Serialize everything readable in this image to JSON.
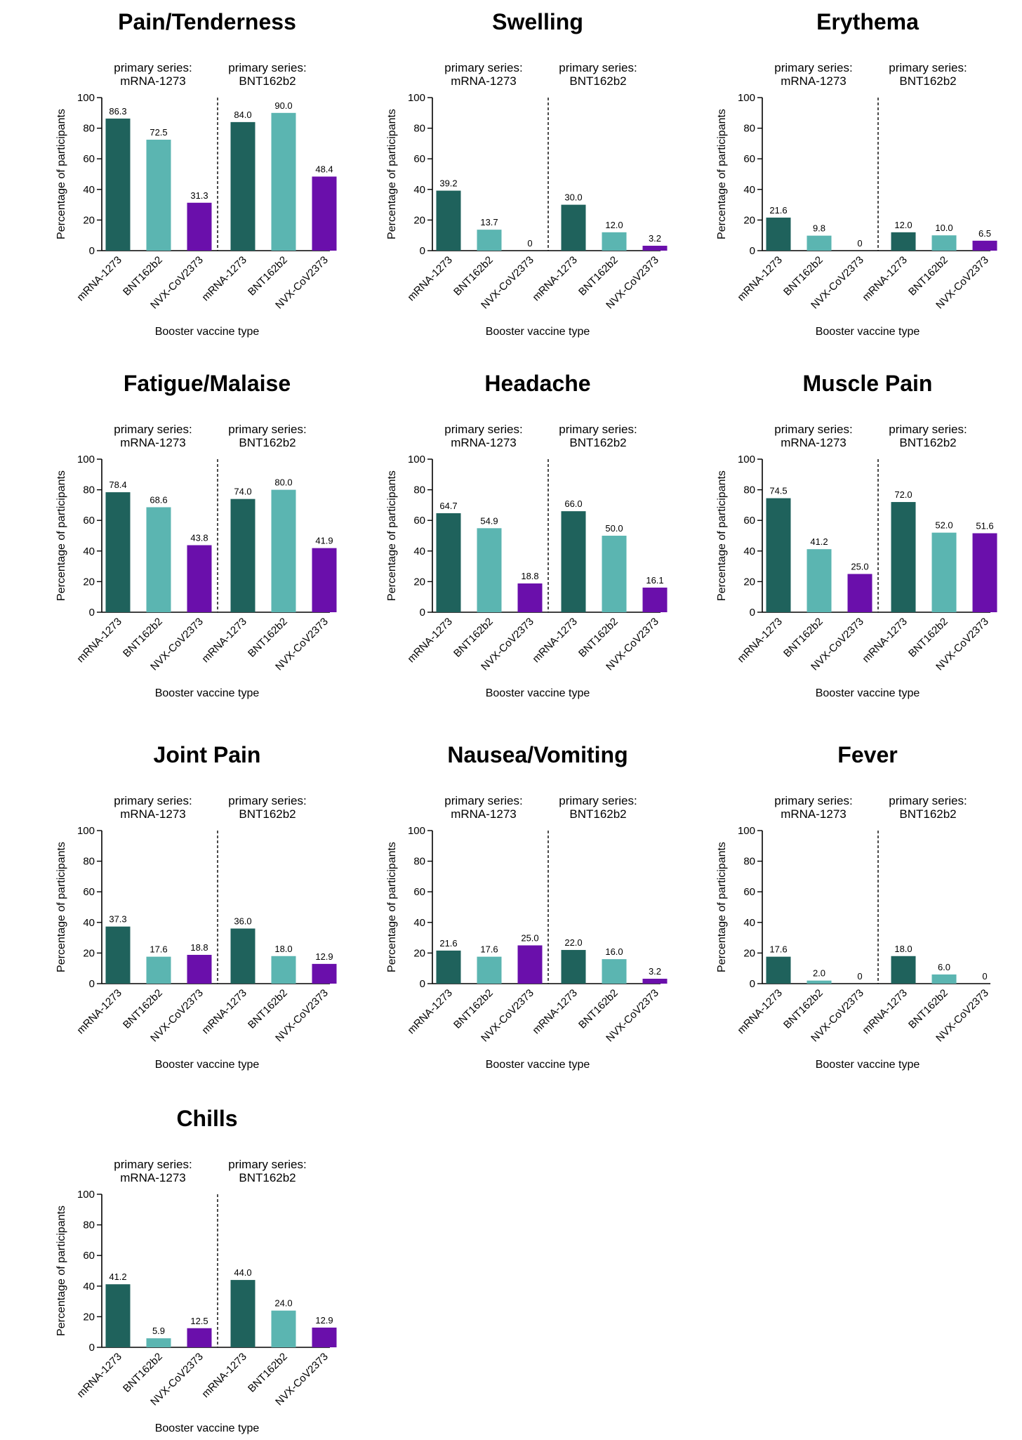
{
  "chart_data": [
    {
      "type": "bar",
      "title": "Pain/Tenderness",
      "group_labels": [
        {
          "line1": "primary series:",
          "line2": "mRNA-1273"
        },
        {
          "line1": "primary series:",
          "line2": "BNT162b2"
        }
      ],
      "categories": [
        "mRNA-1273",
        "BNT162b2",
        "NVX-CoV2373",
        "mRNA-1273",
        "BNT162b2",
        "NVX-CoV2373"
      ],
      "values": [
        86.3,
        72.5,
        31.3,
        84.0,
        90.0,
        48.4
      ],
      "value_labels": [
        "86.3",
        "72.5",
        "31.3",
        "84.0",
        "90.0",
        "48.4"
      ],
      "xlabel": "Booster vaccine type",
      "ylabel": "Percentage of participants",
      "ylim": [
        0,
        100
      ],
      "yticks": [
        "0",
        "20",
        "40",
        "60",
        "80",
        "100"
      ]
    },
    {
      "type": "bar",
      "title": "Swelling",
      "group_labels": [
        {
          "line1": "primary series:",
          "line2": "mRNA-1273"
        },
        {
          "line1": "primary series:",
          "line2": "BNT162b2"
        }
      ],
      "categories": [
        "mRNA-1273",
        "BNT162b2",
        "NVX-CoV2373",
        "mRNA-1273",
        "BNT162b2",
        "NVX-CoV2373"
      ],
      "values": [
        39.2,
        13.7,
        0,
        30.0,
        12.0,
        3.2
      ],
      "value_labels": [
        "39.2",
        "13.7",
        "0",
        "30.0",
        "12.0",
        "3.2"
      ],
      "xlabel": "Booster vaccine type",
      "ylabel": "Percentage of participants",
      "ylim": [
        0,
        100
      ],
      "yticks": [
        "0",
        "20",
        "40",
        "60",
        "80",
        "100"
      ]
    },
    {
      "type": "bar",
      "title": "Erythema",
      "group_labels": [
        {
          "line1": "primary series:",
          "line2": "mRNA-1273"
        },
        {
          "line1": "primary series:",
          "line2": "BNT162b2"
        }
      ],
      "categories": [
        "mRNA-1273",
        "BNT162b2",
        "NVX-CoV2373",
        "mRNA-1273",
        "BNT162b2",
        "NVX-CoV2373"
      ],
      "values": [
        21.6,
        9.8,
        0,
        12.0,
        10.0,
        6.5
      ],
      "value_labels": [
        "21.6",
        "9.8",
        "0",
        "12.0",
        "10.0",
        "6.5"
      ],
      "xlabel": "Booster vaccine type",
      "ylabel": "Percentage of participants",
      "ylim": [
        0,
        100
      ],
      "yticks": [
        "0",
        "20",
        "40",
        "60",
        "80",
        "100"
      ]
    },
    {
      "type": "bar",
      "title": "Fatigue/Malaise",
      "group_labels": [
        {
          "line1": "primary series:",
          "line2": "mRNA-1273"
        },
        {
          "line1": "primary series:",
          "line2": "BNT162b2"
        }
      ],
      "categories": [
        "mRNA-1273",
        "BNT162b2",
        "NVX-CoV2373",
        "mRNA-1273",
        "BNT162b2",
        "NVX-CoV2373"
      ],
      "values": [
        78.4,
        68.6,
        43.8,
        74.0,
        80.0,
        41.9
      ],
      "value_labels": [
        "78.4",
        "68.6",
        "43.8",
        "74.0",
        "80.0",
        "41.9"
      ],
      "xlabel": "Booster vaccine type",
      "ylabel": "Percentage of participants",
      "ylim": [
        0,
        100
      ],
      "yticks": [
        "0",
        "20",
        "40",
        "60",
        "80",
        "100"
      ]
    },
    {
      "type": "bar",
      "title": "Headache",
      "group_labels": [
        {
          "line1": "primary series:",
          "line2": "mRNA-1273"
        },
        {
          "line1": "primary series:",
          "line2": "BNT162b2"
        }
      ],
      "categories": [
        "mRNA-1273",
        "BNT162b2",
        "NVX-CoV2373",
        "mRNA-1273",
        "BNT162b2",
        "NVX-CoV2373"
      ],
      "values": [
        64.7,
        54.9,
        18.8,
        66.0,
        50.0,
        16.1
      ],
      "value_labels": [
        "64.7",
        "54.9",
        "18.8",
        "66.0",
        "50.0",
        "16.1"
      ],
      "xlabel": "Booster vaccine type",
      "ylabel": "Percentage of participants",
      "ylim": [
        0,
        100
      ],
      "yticks": [
        "0",
        "20",
        "40",
        "60",
        "80",
        "100"
      ]
    },
    {
      "type": "bar",
      "title": "Muscle Pain",
      "group_labels": [
        {
          "line1": "primary series:",
          "line2": "mRNA-1273"
        },
        {
          "line1": "primary series:",
          "line2": "BNT162b2"
        }
      ],
      "categories": [
        "mRNA-1273",
        "BNT162b2",
        "NVX-CoV2373",
        "mRNA-1273",
        "BNT162b2",
        "NVX-CoV2373"
      ],
      "values": [
        74.5,
        41.2,
        25.0,
        72.0,
        52.0,
        51.6
      ],
      "value_labels": [
        "74.5",
        "41.2",
        "25.0",
        "72.0",
        "52.0",
        "51.6"
      ],
      "xlabel": "Booster vaccine type",
      "ylabel": "Percentage of participants",
      "ylim": [
        0,
        100
      ],
      "yticks": [
        "0",
        "20",
        "40",
        "60",
        "80",
        "100"
      ]
    },
    {
      "type": "bar",
      "title": "Joint Pain",
      "group_labels": [
        {
          "line1": "primary series:",
          "line2": "mRNA-1273"
        },
        {
          "line1": "primary series:",
          "line2": "BNT162b2"
        }
      ],
      "categories": [
        "mRNA-1273",
        "BNT162b2",
        "NVX-CoV2373",
        "mRNA-1273",
        "BNT162b2",
        "NVX-CoV2373"
      ],
      "values": [
        37.3,
        17.6,
        18.8,
        36.0,
        18.0,
        12.9
      ],
      "value_labels": [
        "37.3",
        "17.6",
        "18.8",
        "36.0",
        "18.0",
        "12.9"
      ],
      "xlabel": "Booster vaccine type",
      "ylabel": "Percentage of participants",
      "ylim": [
        0,
        100
      ],
      "yticks": [
        "0",
        "20",
        "40",
        "60",
        "80",
        "100"
      ]
    },
    {
      "type": "bar",
      "title": "Nausea/Vomiting",
      "group_labels": [
        {
          "line1": "primary series:",
          "line2": "mRNA-1273"
        },
        {
          "line1": "primary series:",
          "line2": "BNT162b2"
        }
      ],
      "categories": [
        "mRNA-1273",
        "BNT162b2",
        "NVX-CoV2373",
        "mRNA-1273",
        "BNT162b2",
        "NVX-CoV2373"
      ],
      "values": [
        21.6,
        17.6,
        25.0,
        22.0,
        16.0,
        3.2
      ],
      "value_labels": [
        "21.6",
        "17.6",
        "25.0",
        "22.0",
        "16.0",
        "3.2"
      ],
      "xlabel": "Booster vaccine type",
      "ylabel": "Percentage of participants",
      "ylim": [
        0,
        100
      ],
      "yticks": [
        "0",
        "20",
        "40",
        "60",
        "80",
        "100"
      ]
    },
    {
      "type": "bar",
      "title": "Fever",
      "group_labels": [
        {
          "line1": "primary series:",
          "line2": "mRNA-1273"
        },
        {
          "line1": "primary series:",
          "line2": "BNT162b2"
        }
      ],
      "categories": [
        "mRNA-1273",
        "BNT162b2",
        "NVX-CoV2373",
        "mRNA-1273",
        "BNT162b2",
        "NVX-CoV2373"
      ],
      "values": [
        17.6,
        2.0,
        0,
        18.0,
        6.0,
        0
      ],
      "value_labels": [
        "17.6",
        "2.0",
        "0",
        "18.0",
        "6.0",
        "0"
      ],
      "xlabel": "Booster vaccine type",
      "ylabel": "Percentage of participants",
      "ylim": [
        0,
        100
      ],
      "yticks": [
        "0",
        "20",
        "40",
        "60",
        "80",
        "100"
      ]
    },
    {
      "type": "bar",
      "title": "Chills",
      "group_labels": [
        {
          "line1": "primary series:",
          "line2": "mRNA-1273"
        },
        {
          "line1": "primary series:",
          "line2": "BNT162b2"
        }
      ],
      "categories": [
        "mRNA-1273",
        "BNT162b2",
        "NVX-CoV2373",
        "mRNA-1273",
        "BNT162b2",
        "NVX-CoV2373"
      ],
      "values": [
        41.2,
        5.9,
        12.5,
        44.0,
        24.0,
        12.9
      ],
      "value_labels": [
        "41.2",
        "5.9",
        "12.5",
        "44.0",
        "24.0",
        "12.9"
      ],
      "xlabel": "Booster vaccine type",
      "ylabel": "Percentage of participants",
      "ylim": [
        0,
        100
      ],
      "yticks": [
        "0",
        "20",
        "40",
        "60",
        "80",
        "100"
      ]
    }
  ],
  "colors": {
    "mRNA-1273": "#1f625c",
    "BNT162b2": "#5bb5b1",
    "NVX-CoV2373": "#6a0fab"
  }
}
